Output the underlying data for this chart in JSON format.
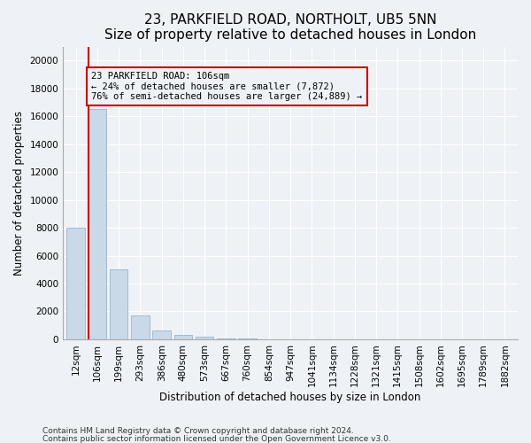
{
  "title": "23, PARKFIELD ROAD, NORTHOLT, UB5 5NN",
  "subtitle": "Size of property relative to detached houses in London",
  "xlabel": "Distribution of detached houses by size in London",
  "ylabel": "Number of detached properties",
  "footnote1": "Contains HM Land Registry data © Crown copyright and database right 2024.",
  "footnote2": "Contains public sector information licensed under the Open Government Licence v3.0.",
  "annotation_line1": "23 PARKFIELD ROAD: 106sqm",
  "annotation_line2": "← 24% of detached houses are smaller (7,872)",
  "annotation_line3": "76% of semi-detached houses are larger (24,889) →",
  "property_bin_index": 1,
  "bar_color": "#c9d9e8",
  "bar_edgecolor": "#9ab4cc",
  "redline_color": "#cc0000",
  "annotation_box_edgecolor": "#cc0000",
  "categories": [
    "12sqm",
    "106sqm",
    "199sqm",
    "293sqm",
    "386sqm",
    "480sqm",
    "573sqm",
    "667sqm",
    "760sqm",
    "854sqm",
    "947sqm",
    "1041sqm",
    "1134sqm",
    "1228sqm",
    "1321sqm",
    "1415sqm",
    "1508sqm",
    "1602sqm",
    "1695sqm",
    "1789sqm",
    "1882sqm"
  ],
  "values": [
    8000,
    16500,
    5000,
    1700,
    600,
    280,
    150,
    80,
    40,
    0,
    0,
    0,
    0,
    0,
    0,
    0,
    0,
    0,
    0,
    0,
    0
  ],
  "ylim": [
    0,
    21000
  ],
  "yticks": [
    0,
    2000,
    4000,
    6000,
    8000,
    10000,
    12000,
    14000,
    16000,
    18000,
    20000
  ],
  "background_color": "#eef2f7",
  "grid_color": "#ffffff",
  "title_fontsize": 11,
  "axis_fontsize": 8.5,
  "tick_fontsize": 7.5,
  "annot_fontsize": 7.5
}
